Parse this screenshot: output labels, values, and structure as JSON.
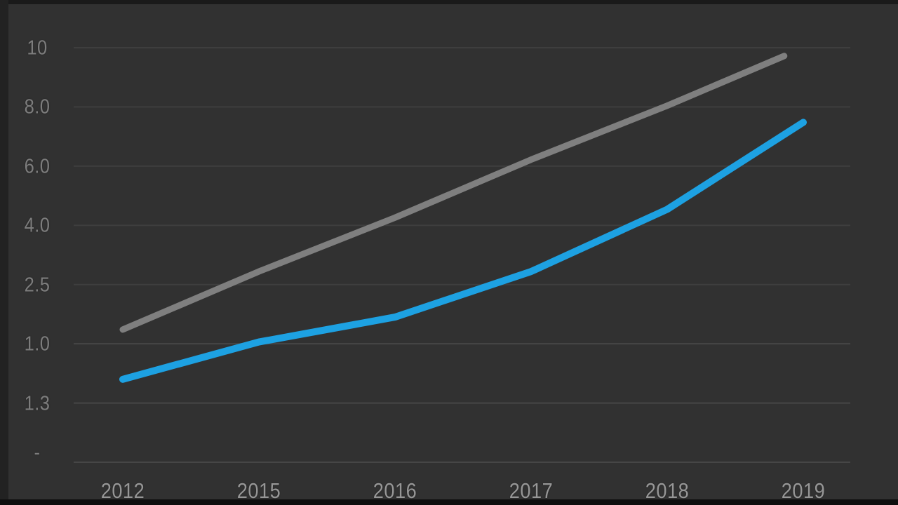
{
  "window": {
    "description_label": "dark-themed line chart video frame, no title, no legend",
    "background_color": "#313131"
  },
  "chart_data": {
    "type": "line",
    "title": "",
    "xlabel": "",
    "ylabel": "",
    "categories": [
      "2012",
      "2015",
      "2016",
      "2017",
      "2018",
      "2019"
    ],
    "x_axis": {
      "tick_labels": [
        "2012",
        "2015",
        "2016",
        "2017",
        "2018",
        "2019"
      ]
    },
    "y_axis": {
      "tick_labels": [
        "10",
        "8.0",
        "6.0",
        "4.0",
        "2.5",
        "1.0",
        "1.3",
        "-"
      ],
      "min": 0,
      "max": 10,
      "zero_label": "-"
    },
    "grid": "horizontal",
    "legend_position": "none",
    "series": [
      {
        "name": "upper-gray-line",
        "color": "#7f7f7f",
        "stroke_width": 9,
        "shape": "straight",
        "points": [
          [
            0,
            3.2
          ],
          [
            1,
            4.6
          ],
          [
            2,
            5.9
          ],
          [
            3,
            7.3
          ],
          [
            4,
            8.6
          ],
          [
            4.86,
            9.8
          ]
        ]
      },
      {
        "name": "lower-blue-line",
        "color": "#1da1e2",
        "stroke_width": 10,
        "shape": "slight-curve",
        "points": [
          [
            0,
            2.0
          ],
          [
            1,
            2.9
          ],
          [
            2,
            3.5
          ],
          [
            3,
            4.6
          ],
          [
            4,
            6.1
          ],
          [
            5,
            8.2
          ]
        ]
      }
    ],
    "colors": {
      "background": "#313131",
      "gridline": "#3e3e3e",
      "gridline_bright": "#464646",
      "y_tick_text": "#7d7d7d",
      "x_tick_text": "#969696",
      "gray_series": "#7f7f7f",
      "blue_series": "#1da1e2"
    }
  }
}
